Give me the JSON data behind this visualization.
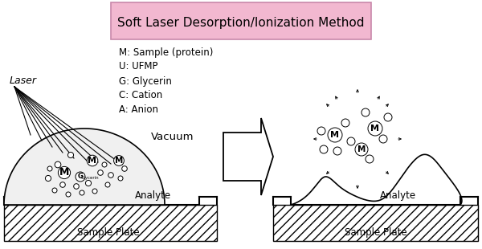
{
  "title": "Soft Laser Desorption/Ionization Method",
  "title_box_color": "#f2b8d0",
  "title_fontsize": 11,
  "background_color": "#ffffff",
  "legend_lines": [
    "M: Sample (protein)",
    "U: UFMP",
    "G: Glycerin",
    "C: Cation",
    "A: Anion"
  ],
  "labels": {
    "laser": "Laser",
    "vacuum": "Vacuum",
    "analyte_left": "Analyte",
    "analyte_right": "Analyte",
    "sample_plate_left": "Sample Plate",
    "sample_plate_right": "Sample Plate"
  }
}
